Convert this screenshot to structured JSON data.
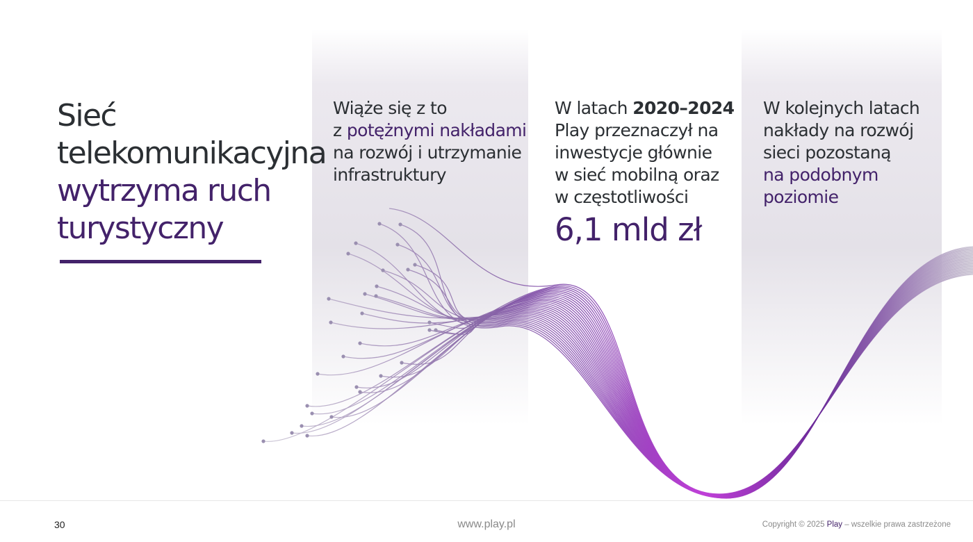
{
  "page": {
    "title_lines": [
      "Sieć",
      "telekomunikacyjna"
    ],
    "title_highlight_lines": [
      "wytrzyma ruch",
      "turystyczny"
    ]
  },
  "columns": [
    {
      "lines": [
        {
          "parts": [
            {
              "text": "Wiąże się z to"
            }
          ]
        },
        {
          "parts": [
            {
              "text": "z "
            },
            {
              "text": "potężnymi nakładami",
              "style": "highlight"
            }
          ]
        },
        {
          "parts": [
            {
              "text": "na rozwój i utrzymanie"
            }
          ]
        },
        {
          "parts": [
            {
              "text": "infrastruktury"
            }
          ]
        }
      ]
    },
    {
      "lines": [
        {
          "parts": [
            {
              "text": "W latach "
            },
            {
              "text": "2020–2024",
              "style": "bold"
            }
          ]
        },
        {
          "parts": [
            {
              "text": "Play przeznaczył na"
            }
          ]
        },
        {
          "parts": [
            {
              "text": "inwestycje głównie"
            }
          ]
        },
        {
          "parts": [
            {
              "text": "w sieć mobilną oraz"
            }
          ]
        },
        {
          "parts": [
            {
              "text": "w częstotliwości"
            }
          ]
        }
      ],
      "big_value": "6,1 mld zł"
    },
    {
      "lines": [
        {
          "parts": [
            {
              "text": "W kolejnych latach"
            }
          ]
        },
        {
          "parts": [
            {
              "text": "nakłady na rozwój"
            }
          ]
        },
        {
          "parts": [
            {
              "text": "sieci pozostaną"
            }
          ]
        },
        {
          "parts": [
            {
              "text": "na podobnym",
              "style": "highlight"
            }
          ]
        },
        {
          "parts": [
            {
              "text": "poziomie",
              "style": "highlight"
            }
          ]
        }
      ]
    }
  ],
  "footer": {
    "page_number": "30",
    "website": "www.play.pl",
    "copyright_prefix": "Copyright © 2025 ",
    "copyright_brand": "Play",
    "copyright_suffix": " – wszelkie prawa zastrzeżone"
  },
  "colors": {
    "accent": "#43226a",
    "text": "#2b2f33",
    "wave_light": "#9a8fb0",
    "wave_mid": "#6a3a9a",
    "wave_magenta": "#b040d0"
  }
}
